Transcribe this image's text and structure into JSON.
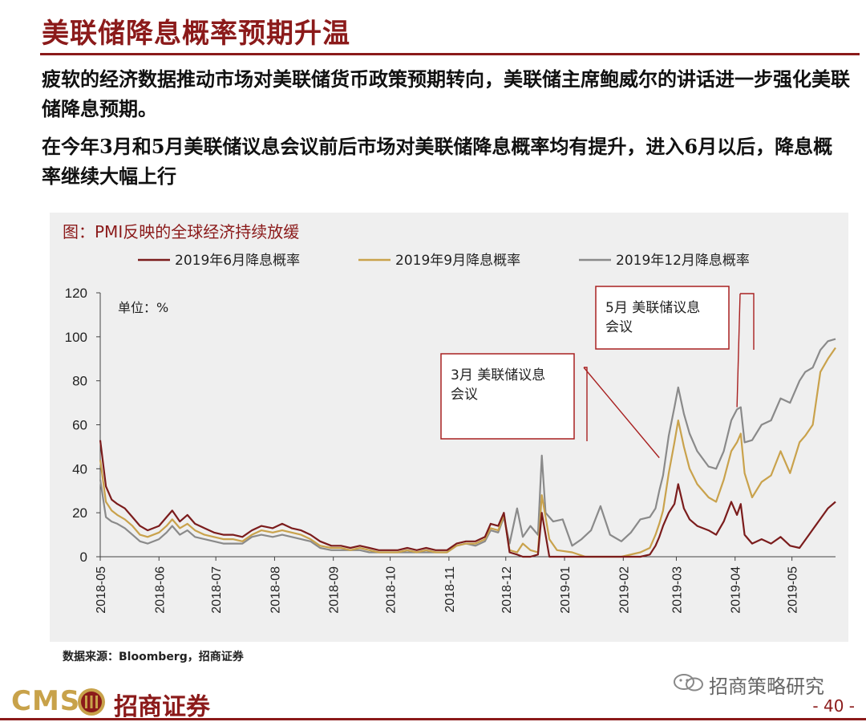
{
  "slide": {
    "title": "美联储降息概率预期升温",
    "paragraph1": "疲软的经济数据推动市场对美联储货币政策预期转向，美联储主席鲍威尔的讲话进一步强化美联储降息预期。",
    "paragraph2": "在今年3月和5月美联储议息会议前后市场对美联储降息概率均有提升，进入6月以后，降息概率继续大幅上行",
    "source": "数据来源：Bloomberg，招商证券",
    "logo_cms": "CMS",
    "logo_cn": "招商证券",
    "wechat": "招商策略研究",
    "page": "- 40 -"
  },
  "chart_data": {
    "type": "line",
    "title": "图：PMI反映的全球经济持续放缓",
    "unit_label": "单位：%",
    "ylim": [
      0,
      120
    ],
    "yticks": [
      "0",
      "20",
      "40",
      "60",
      "80",
      "100",
      "120"
    ],
    "xlim": [
      "2018-05-01",
      "2019-05-24"
    ],
    "xticks": [
      "2018-05",
      "2018-06",
      "2018-07",
      "2018-08",
      "2018-09",
      "2018-10",
      "2018-11",
      "2018-12",
      "2019-01",
      "2019-02",
      "2019-03",
      "2019-04",
      "2019-05"
    ],
    "legend_position": "top",
    "grid": false,
    "annotations": [
      {
        "text": "3月 美联储议息会议",
        "target_date": "2019-02-20",
        "target_value": 45
      },
      {
        "text": "5月 美联储议息会议",
        "target_date": "2019-04-02",
        "target_value": 68
      }
    ],
    "series": [
      {
        "name": "2019年6月降息概率",
        "color": "#7b1c1c",
        "points": [
          [
            "2018-05-01",
            53
          ],
          [
            "2018-05-04",
            32
          ],
          [
            "2018-05-07",
            26
          ],
          [
            "2018-05-10",
            24
          ],
          [
            "2018-05-14",
            22
          ],
          [
            "2018-05-18",
            18
          ],
          [
            "2018-05-22",
            14
          ],
          [
            "2018-05-26",
            12
          ],
          [
            "2018-06-01",
            14
          ],
          [
            "2018-06-05",
            18
          ],
          [
            "2018-06-08",
            21
          ],
          [
            "2018-06-12",
            16
          ],
          [
            "2018-06-16",
            19
          ],
          [
            "2018-06-20",
            15
          ],
          [
            "2018-06-25",
            13
          ],
          [
            "2018-06-30",
            11
          ],
          [
            "2018-07-05",
            10
          ],
          [
            "2018-07-10",
            10
          ],
          [
            "2018-07-15",
            9
          ],
          [
            "2018-07-20",
            12
          ],
          [
            "2018-07-25",
            14
          ],
          [
            "2018-07-31",
            13
          ],
          [
            "2018-08-05",
            15
          ],
          [
            "2018-08-10",
            13
          ],
          [
            "2018-08-15",
            12
          ],
          [
            "2018-08-20",
            10
          ],
          [
            "2018-08-25",
            7
          ],
          [
            "2018-08-31",
            5
          ],
          [
            "2018-09-05",
            5
          ],
          [
            "2018-09-10",
            4
          ],
          [
            "2018-09-15",
            5
          ],
          [
            "2018-09-20",
            4
          ],
          [
            "2018-09-25",
            3
          ],
          [
            "2018-09-30",
            3
          ],
          [
            "2018-10-05",
            3
          ],
          [
            "2018-10-10",
            4
          ],
          [
            "2018-10-15",
            3
          ],
          [
            "2018-10-20",
            4
          ],
          [
            "2018-10-25",
            3
          ],
          [
            "2018-10-31",
            3
          ],
          [
            "2018-11-05",
            6
          ],
          [
            "2018-11-10",
            7
          ],
          [
            "2018-11-15",
            7
          ],
          [
            "2018-11-20",
            9
          ],
          [
            "2018-11-23",
            15
          ],
          [
            "2018-11-27",
            14
          ],
          [
            "2018-11-30",
            20
          ],
          [
            "2018-12-03",
            2
          ],
          [
            "2018-12-07",
            1
          ],
          [
            "2018-12-10",
            0
          ],
          [
            "2018-12-14",
            0
          ],
          [
            "2018-12-18",
            1
          ],
          [
            "2018-12-20",
            20
          ],
          [
            "2018-12-24",
            0
          ],
          [
            "2018-12-31",
            0
          ],
          [
            "2019-01-10",
            0
          ],
          [
            "2019-01-20",
            0
          ],
          [
            "2019-01-31",
            0
          ],
          [
            "2019-02-10",
            0
          ],
          [
            "2019-02-15",
            1
          ],
          [
            "2019-02-18",
            5
          ],
          [
            "2019-02-20",
            9
          ],
          [
            "2019-02-22",
            14
          ],
          [
            "2019-02-25",
            20
          ],
          [
            "2019-02-28",
            24
          ],
          [
            "2019-03-02",
            33
          ],
          [
            "2019-03-05",
            22
          ],
          [
            "2019-03-08",
            17
          ],
          [
            "2019-03-12",
            14
          ],
          [
            "2019-03-18",
            12
          ],
          [
            "2019-03-22",
            10
          ],
          [
            "2019-03-26",
            16
          ],
          [
            "2019-03-30",
            25
          ],
          [
            "2019-04-02",
            19
          ],
          [
            "2019-04-04",
            24
          ],
          [
            "2019-04-06",
            10
          ],
          [
            "2019-04-10",
            6
          ],
          [
            "2019-04-15",
            8
          ],
          [
            "2019-04-20",
            6
          ],
          [
            "2019-04-25",
            9
          ],
          [
            "2019-04-30",
            5
          ],
          [
            "2019-05-05",
            4
          ],
          [
            "2019-05-10",
            10
          ],
          [
            "2019-05-15",
            16
          ],
          [
            "2019-05-20",
            22
          ],
          [
            "2019-05-24",
            25
          ]
        ]
      },
      {
        "name": "2019年9月降息概率",
        "color": "#c9a24c",
        "points": [
          [
            "2018-05-01",
            44
          ],
          [
            "2018-05-04",
            25
          ],
          [
            "2018-05-07",
            21
          ],
          [
            "2018-05-10",
            19
          ],
          [
            "2018-05-14",
            17
          ],
          [
            "2018-05-18",
            14
          ],
          [
            "2018-05-22",
            10
          ],
          [
            "2018-05-26",
            9
          ],
          [
            "2018-06-01",
            11
          ],
          [
            "2018-06-05",
            14
          ],
          [
            "2018-06-08",
            17
          ],
          [
            "2018-06-12",
            13
          ],
          [
            "2018-06-16",
            15
          ],
          [
            "2018-06-20",
            12
          ],
          [
            "2018-06-25",
            10
          ],
          [
            "2018-06-30",
            9
          ],
          [
            "2018-07-05",
            8
          ],
          [
            "2018-07-10",
            8
          ],
          [
            "2018-07-15",
            7
          ],
          [
            "2018-07-20",
            10
          ],
          [
            "2018-07-25",
            12
          ],
          [
            "2018-07-31",
            11
          ],
          [
            "2018-08-05",
            12
          ],
          [
            "2018-08-10",
            11
          ],
          [
            "2018-08-15",
            10
          ],
          [
            "2018-08-20",
            8
          ],
          [
            "2018-08-25",
            5
          ],
          [
            "2018-08-31",
            4
          ],
          [
            "2018-09-05",
            4
          ],
          [
            "2018-09-10",
            3
          ],
          [
            "2018-09-15",
            4
          ],
          [
            "2018-09-20",
            3
          ],
          [
            "2018-09-25",
            2
          ],
          [
            "2018-09-30",
            2
          ],
          [
            "2018-10-05",
            2
          ],
          [
            "2018-10-10",
            3
          ],
          [
            "2018-10-15",
            2
          ],
          [
            "2018-10-20",
            3
          ],
          [
            "2018-10-25",
            2
          ],
          [
            "2018-10-31",
            2
          ],
          [
            "2018-11-05",
            5
          ],
          [
            "2018-11-10",
            6
          ],
          [
            "2018-11-15",
            6
          ],
          [
            "2018-11-20",
            8
          ],
          [
            "2018-11-23",
            13
          ],
          [
            "2018-11-27",
            12
          ],
          [
            "2018-11-30",
            19
          ],
          [
            "2018-12-03",
            3
          ],
          [
            "2018-12-07",
            2
          ],
          [
            "2018-12-10",
            6
          ],
          [
            "2018-12-14",
            3
          ],
          [
            "2018-12-18",
            2
          ],
          [
            "2018-12-20",
            28
          ],
          [
            "2018-12-24",
            8
          ],
          [
            "2018-12-28",
            3
          ],
          [
            "2019-01-05",
            2
          ],
          [
            "2019-01-12",
            0
          ],
          [
            "2019-01-20",
            0
          ],
          [
            "2019-01-31",
            0
          ],
          [
            "2019-02-10",
            2
          ],
          [
            "2019-02-15",
            4
          ],
          [
            "2019-02-18",
            10
          ],
          [
            "2019-02-20",
            15
          ],
          [
            "2019-02-22",
            21
          ],
          [
            "2019-02-25",
            38
          ],
          [
            "2019-02-28",
            52
          ],
          [
            "2019-03-02",
            62
          ],
          [
            "2019-03-05",
            50
          ],
          [
            "2019-03-08",
            40
          ],
          [
            "2019-03-12",
            33
          ],
          [
            "2019-03-18",
            27
          ],
          [
            "2019-03-22",
            25
          ],
          [
            "2019-03-26",
            35
          ],
          [
            "2019-03-30",
            48
          ],
          [
            "2019-04-02",
            52
          ],
          [
            "2019-04-04",
            56
          ],
          [
            "2019-04-06",
            38
          ],
          [
            "2019-04-10",
            27
          ],
          [
            "2019-04-15",
            34
          ],
          [
            "2019-04-20",
            37
          ],
          [
            "2019-04-25",
            48
          ],
          [
            "2019-04-30",
            38
          ],
          [
            "2019-05-05",
            52
          ],
          [
            "2019-05-08",
            55
          ],
          [
            "2019-05-12",
            60
          ],
          [
            "2019-05-16",
            84
          ],
          [
            "2019-05-20",
            90
          ],
          [
            "2019-05-24",
            95
          ]
        ]
      },
      {
        "name": "2019年12月降息概率",
        "color": "#8a8a8a",
        "points": [
          [
            "2018-05-01",
            35
          ],
          [
            "2018-05-04",
            18
          ],
          [
            "2018-05-07",
            16
          ],
          [
            "2018-05-10",
            15
          ],
          [
            "2018-05-14",
            13
          ],
          [
            "2018-05-18",
            10
          ],
          [
            "2018-05-22",
            7
          ],
          [
            "2018-05-26",
            6
          ],
          [
            "2018-06-01",
            8
          ],
          [
            "2018-06-05",
            11
          ],
          [
            "2018-06-08",
            14
          ],
          [
            "2018-06-12",
            10
          ],
          [
            "2018-06-16",
            12
          ],
          [
            "2018-06-20",
            9
          ],
          [
            "2018-06-25",
            8
          ],
          [
            "2018-06-30",
            7
          ],
          [
            "2018-07-05",
            6
          ],
          [
            "2018-07-10",
            6
          ],
          [
            "2018-07-15",
            6
          ],
          [
            "2018-07-20",
            9
          ],
          [
            "2018-07-25",
            10
          ],
          [
            "2018-07-31",
            9
          ],
          [
            "2018-08-05",
            10
          ],
          [
            "2018-08-10",
            9
          ],
          [
            "2018-08-15",
            8
          ],
          [
            "2018-08-20",
            7
          ],
          [
            "2018-08-25",
            4
          ],
          [
            "2018-08-31",
            3
          ],
          [
            "2018-09-05",
            3
          ],
          [
            "2018-09-10",
            3
          ],
          [
            "2018-09-15",
            3
          ],
          [
            "2018-09-20",
            2
          ],
          [
            "2018-09-25",
            2
          ],
          [
            "2018-09-30",
            2
          ],
          [
            "2018-10-05",
            2
          ],
          [
            "2018-10-10",
            2
          ],
          [
            "2018-10-15",
            2
          ],
          [
            "2018-10-20",
            2
          ],
          [
            "2018-10-25",
            2
          ],
          [
            "2018-10-31",
            2
          ],
          [
            "2018-11-05",
            5
          ],
          [
            "2018-11-10",
            6
          ],
          [
            "2018-11-15",
            5
          ],
          [
            "2018-11-20",
            7
          ],
          [
            "2018-11-23",
            12
          ],
          [
            "2018-11-27",
            11
          ],
          [
            "2018-11-30",
            18
          ],
          [
            "2018-12-03",
            6
          ],
          [
            "2018-12-07",
            22
          ],
          [
            "2018-12-10",
            9
          ],
          [
            "2018-12-14",
            14
          ],
          [
            "2018-12-18",
            10
          ],
          [
            "2018-12-20",
            46
          ],
          [
            "2018-12-22",
            20
          ],
          [
            "2018-12-26",
            16
          ],
          [
            "2018-12-31",
            17
          ],
          [
            "2019-01-05",
            5
          ],
          [
            "2019-01-10",
            8
          ],
          [
            "2019-01-15",
            12
          ],
          [
            "2019-01-20",
            23
          ],
          [
            "2019-01-25",
            10
          ],
          [
            "2019-01-31",
            7
          ],
          [
            "2019-02-05",
            11
          ],
          [
            "2019-02-10",
            17
          ],
          [
            "2019-02-15",
            18
          ],
          [
            "2019-02-18",
            22
          ],
          [
            "2019-02-20",
            30
          ],
          [
            "2019-02-22",
            37
          ],
          [
            "2019-02-25",
            55
          ],
          [
            "2019-02-28",
            68
          ],
          [
            "2019-03-02",
            77
          ],
          [
            "2019-03-05",
            65
          ],
          [
            "2019-03-08",
            56
          ],
          [
            "2019-03-12",
            48
          ],
          [
            "2019-03-18",
            41
          ],
          [
            "2019-03-22",
            40
          ],
          [
            "2019-03-26",
            48
          ],
          [
            "2019-03-30",
            62
          ],
          [
            "2019-04-02",
            67
          ],
          [
            "2019-04-04",
            68
          ],
          [
            "2019-04-06",
            52
          ],
          [
            "2019-04-10",
            53
          ],
          [
            "2019-04-15",
            60
          ],
          [
            "2019-04-20",
            62
          ],
          [
            "2019-04-25",
            72
          ],
          [
            "2019-04-30",
            70
          ],
          [
            "2019-05-05",
            80
          ],
          [
            "2019-05-08",
            84
          ],
          [
            "2019-05-12",
            86
          ],
          [
            "2019-05-16",
            94
          ],
          [
            "2019-05-20",
            98
          ],
          [
            "2019-05-24",
            99
          ]
        ]
      }
    ]
  }
}
